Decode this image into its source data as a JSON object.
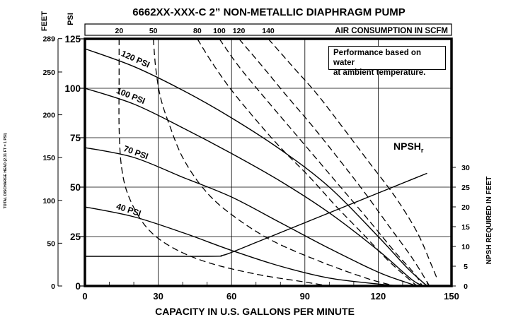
{
  "chart_data": {
    "type": "line",
    "title": "6662XX-XXX-C   2” NON-METALLIC DIAPHRAGM PUMP",
    "xlabel": "CAPACITY IN U.S. GALLONS PER MINUTE",
    "xlim": [
      0,
      150
    ],
    "x_ticks": [
      "0",
      "30",
      "60",
      "90",
      "120",
      "150"
    ],
    "ylim_psi": [
      0,
      125
    ],
    "ylabel_psi": "PSI",
    "y_ticks_psi": [
      "0",
      "25",
      "50",
      "75",
      "100",
      "125"
    ],
    "ylabel_feet": "FEET",
    "y_ticks_feet": [
      "0",
      "50",
      "100",
      "150",
      "200",
      "250",
      "289"
    ],
    "ylabel_feet_side": "TOTAL DISCHARGE HEAD (2.31 FT = 1 PSI)",
    "top_axis_label": "AIR CONSUMPTION IN SCFM",
    "top_ticks": [
      "20",
      "50",
      "80",
      "100",
      "120",
      "140"
    ],
    "right_axis_label": "NPSH REQUIRED IN FEET",
    "right_ticks": [
      "0",
      "5",
      "10",
      "15",
      "20",
      "25",
      "30"
    ],
    "right_lim": [
      0,
      30
    ],
    "note": [
      "Performance based on water",
      "at ambient temperature."
    ],
    "grid": true,
    "pressure_curves": [
      {
        "name": "120 PSI",
        "points": [
          [
            0,
            120
          ],
          [
            20,
            111
          ],
          [
            40,
            99
          ],
          [
            60,
            85
          ],
          [
            80,
            69
          ],
          [
            100,
            50
          ],
          [
            120,
            25
          ],
          [
            132,
            9
          ],
          [
            140,
            0
          ]
        ]
      },
      {
        "name": "100 PSI",
        "points": [
          [
            0,
            100
          ],
          [
            20,
            92
          ],
          [
            40,
            80
          ],
          [
            60,
            67
          ],
          [
            80,
            53
          ],
          [
            100,
            37
          ],
          [
            120,
            18
          ],
          [
            134,
            3
          ],
          [
            139,
            0
          ]
        ]
      },
      {
        "name": "70 PSI",
        "points": [
          [
            0,
            70
          ],
          [
            20,
            65
          ],
          [
            40,
            55
          ],
          [
            60,
            45
          ],
          [
            80,
            32
          ],
          [
            100,
            19
          ],
          [
            120,
            7
          ],
          [
            131,
            2
          ],
          [
            136,
            0
          ]
        ]
      },
      {
        "name": "40 PSI",
        "points": [
          [
            0,
            40
          ],
          [
            20,
            35
          ],
          [
            40,
            27
          ],
          [
            60,
            18
          ],
          [
            80,
            10
          ],
          [
            100,
            4
          ],
          [
            120,
            1
          ],
          [
            130,
            0
          ]
        ]
      }
    ],
    "air_curves": [
      {
        "scfm": "20",
        "points": [
          [
            14,
            125
          ],
          [
            14,
            105
          ],
          [
            14,
            80
          ],
          [
            15,
            60
          ],
          [
            18,
            45
          ],
          [
            25,
            30
          ],
          [
            35,
            20
          ],
          [
            50,
            12
          ],
          [
            70,
            6
          ],
          [
            90,
            2
          ],
          [
            100,
            0
          ]
        ]
      },
      {
        "scfm": "50",
        "points": [
          [
            28,
            125
          ],
          [
            29,
            110
          ],
          [
            31,
            95
          ],
          [
            35,
            80
          ],
          [
            40,
            65
          ],
          [
            48,
            50
          ],
          [
            58,
            38
          ],
          [
            75,
            24
          ],
          [
            95,
            13
          ],
          [
            115,
            4
          ],
          [
            127,
            0
          ]
        ]
      },
      {
        "scfm": "80",
        "points": [
          [
            46,
            125
          ],
          [
            52,
            113
          ],
          [
            60,
            99
          ],
          [
            70,
            84
          ],
          [
            80,
            70
          ],
          [
            92,
            55
          ],
          [
            103,
            40
          ],
          [
            114,
            26
          ],
          [
            124,
            13
          ],
          [
            133,
            3
          ],
          [
            136,
            0
          ]
        ]
      },
      {
        "scfm": "100",
        "points": [
          [
            55,
            125
          ],
          [
            63,
            111
          ],
          [
            73,
            96
          ],
          [
            84,
            80
          ],
          [
            95,
            64
          ],
          [
            106,
            48
          ],
          [
            117,
            32
          ],
          [
            127,
            17
          ],
          [
            135,
            6
          ],
          [
            138,
            0
          ]
        ]
      },
      {
        "scfm": "120",
        "points": [
          [
            63,
            125
          ],
          [
            72,
            112
          ],
          [
            82,
            97
          ],
          [
            93,
            81
          ],
          [
            104,
            64
          ],
          [
            114,
            48
          ],
          [
            124,
            31
          ],
          [
            134,
            14
          ],
          [
            141,
            0
          ]
        ]
      },
      {
        "scfm": "140",
        "points": [
          [
            75,
            125
          ],
          [
            85,
            111
          ],
          [
            95,
            97
          ],
          [
            105,
            81
          ],
          [
            116,
            63
          ],
          [
            127,
            45
          ],
          [
            136,
            27
          ],
          [
            142,
            10
          ],
          [
            144,
            4
          ]
        ]
      }
    ],
    "npsh_curve": {
      "name": "NPSH",
      "subscript": "r",
      "points": [
        [
          0,
          7.5
        ],
        [
          50,
          7.5
        ],
        [
          56,
          7.7
        ],
        [
          60,
          8.5
        ],
        [
          70,
          11
        ],
        [
          80,
          13.5
        ],
        [
          90,
          16
        ],
        [
          100,
          18.5
        ],
        [
          110,
          21
        ],
        [
          120,
          23.5
        ],
        [
          130,
          26
        ],
        [
          140,
          28.5
        ]
      ]
    },
    "line_labels": [
      "120 PSI",
      "100 PSI",
      "70 PSI",
      "40 PSI"
    ]
  }
}
